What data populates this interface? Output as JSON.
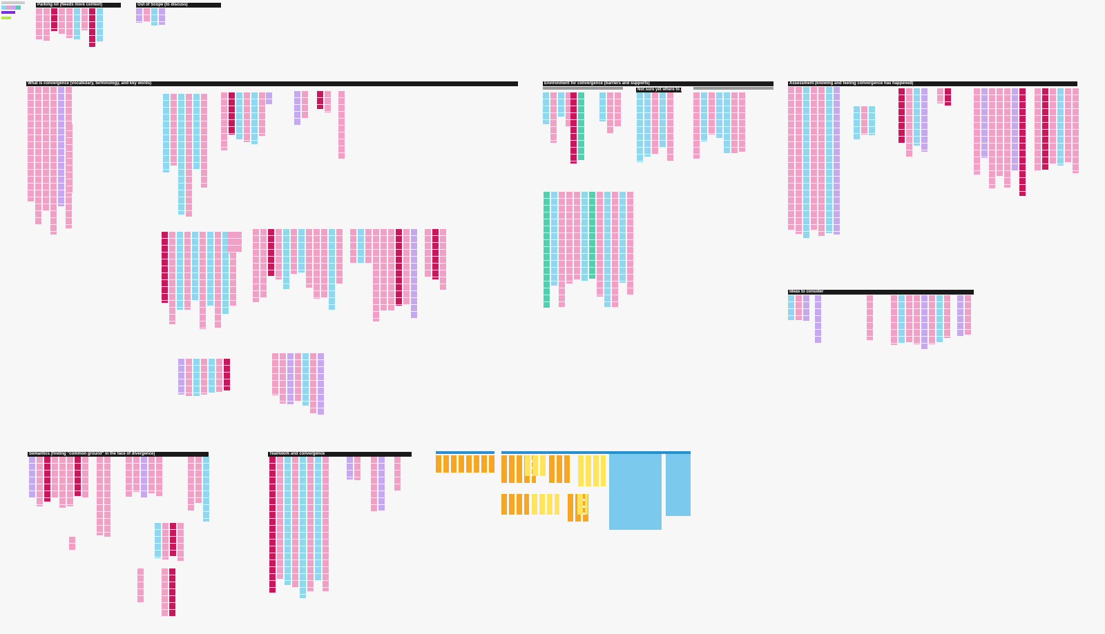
{
  "board": {
    "sections": [
      {
        "title": "Parking lot (Needs more context)"
      },
      {
        "title": "Out of Scope (to discuss)"
      },
      {
        "title": "What is convergence (vocabulary, terminology, and key words)"
      },
      {
        "title": "Environment for convergence (barriers and supports)"
      },
      {
        "title": "Not sure yet where to put..."
      },
      {
        "title": "Assessment (knowing and feeling convergence has happened)"
      },
      {
        "title": "Ideas to consider"
      },
      {
        "title": "Semantics (finding \"common ground\" in the face of divergence)"
      },
      {
        "title": "Teamwork and convergence"
      }
    ]
  }
}
